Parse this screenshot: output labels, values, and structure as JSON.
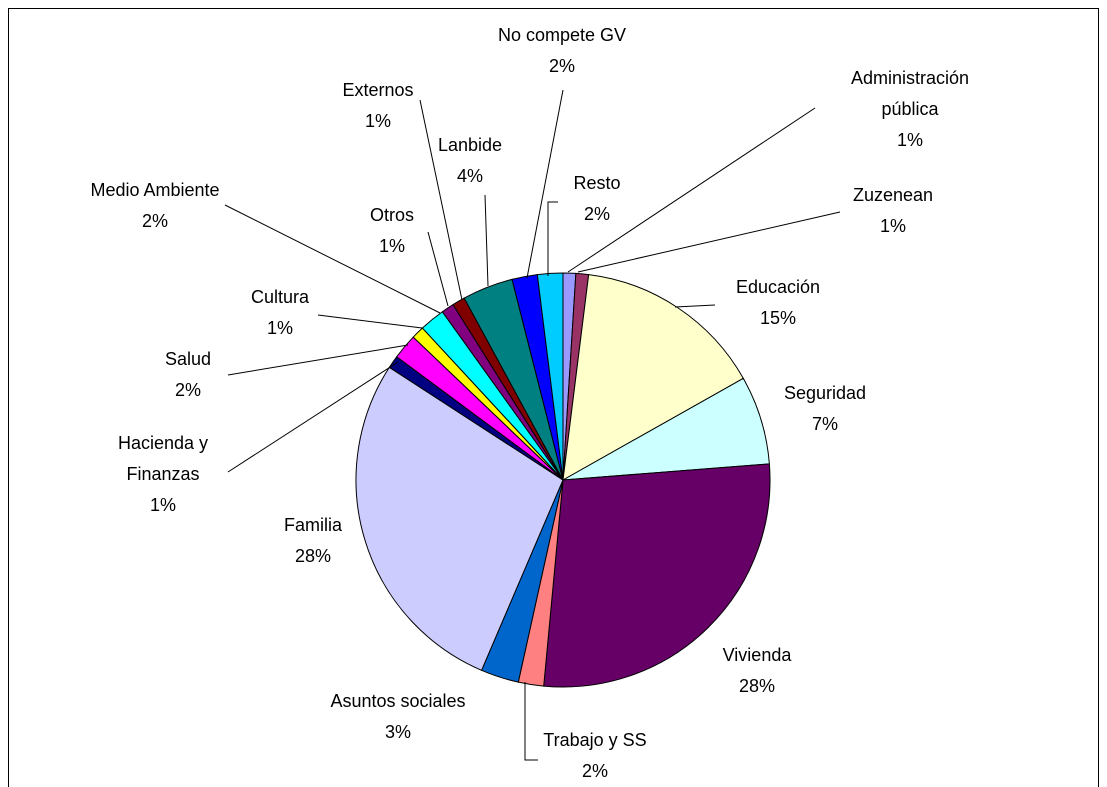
{
  "chart_data": {
    "type": "pie",
    "categories": [
      "Administración pública",
      "Zuzenean",
      "Educación",
      "Seguridad",
      "Vivienda",
      "Trabajo y SS",
      "Asuntos sociales",
      "Familia",
      "Hacienda y Finanzas",
      "Salud",
      "Cultura",
      "Medio Ambiente",
      "Otros",
      "Externos",
      "Lanbide",
      "No compete GV",
      "Resto"
    ],
    "values": [
      1,
      1,
      15,
      7,
      28,
      2,
      3,
      28,
      1,
      2,
      1,
      2,
      1,
      1,
      4,
      2,
      2
    ],
    "value_labels": [
      "1%",
      "1%",
      "15%",
      "7%",
      "28%",
      "2%",
      "3%",
      "28%",
      "1%",
      "2%",
      "1%",
      "2%",
      "1%",
      "1%",
      "4%",
      "2%",
      "2%"
    ],
    "colors": [
      "#9999ff",
      "#993366",
      "#ffffcc",
      "#ccffff",
      "#660066",
      "#ff8080",
      "#0066cc",
      "#ccccff",
      "#000080",
      "#ff00ff",
      "#ffff00",
      "#00ffff",
      "#800080",
      "#800000",
      "#008080",
      "#0000ff",
      "#00ccff"
    ]
  }
}
